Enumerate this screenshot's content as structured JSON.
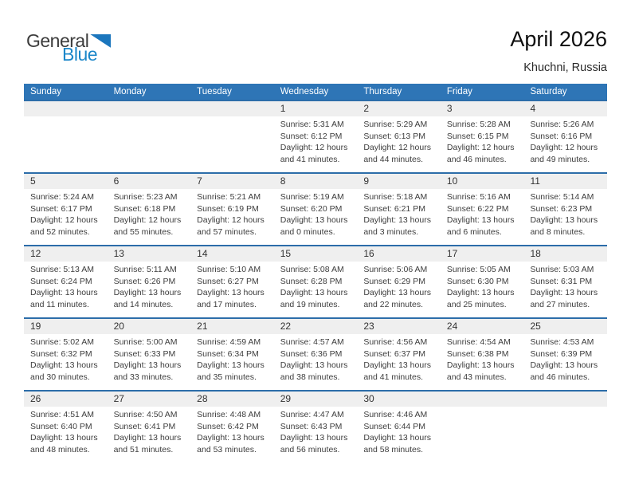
{
  "logo": {
    "word1": "General",
    "word2": "Blue"
  },
  "title": "April 2026",
  "location": "Khuchni, Russia",
  "labels": {
    "sunrise": "Sunrise:",
    "sunset": "Sunset:",
    "daylight": "Daylight:"
  },
  "colors": {
    "header_bg": "#2e75b6",
    "week_border": "#2c6da9",
    "day_band_bg": "#efefef",
    "header_text": "#ffffff",
    "cell_text": "#3d3d3d",
    "day_number_text": "#333333",
    "logo_blue": "#1c87c9",
    "logo_triangle": "#1b76bd",
    "logo_dark": "#3c3c3c"
  },
  "calendar": {
    "weekday_headers": [
      "Sunday",
      "Monday",
      "Tuesday",
      "Wednesday",
      "Thursday",
      "Friday",
      "Saturday"
    ],
    "weeks": [
      {
        "cells": [
          null,
          null,
          null,
          {
            "day": "1",
            "sunrise": "5:31 AM",
            "sunset": "6:12 PM",
            "daylight": "12 hours and 41 minutes."
          },
          {
            "day": "2",
            "sunrise": "5:29 AM",
            "sunset": "6:13 PM",
            "daylight": "12 hours and 44 minutes."
          },
          {
            "day": "3",
            "sunrise": "5:28 AM",
            "sunset": "6:15 PM",
            "daylight": "12 hours and 46 minutes."
          },
          {
            "day": "4",
            "sunrise": "5:26 AM",
            "sunset": "6:16 PM",
            "daylight": "12 hours and 49 minutes."
          }
        ]
      },
      {
        "cells": [
          {
            "day": "5",
            "sunrise": "5:24 AM",
            "sunset": "6:17 PM",
            "daylight": "12 hours and 52 minutes."
          },
          {
            "day": "6",
            "sunrise": "5:23 AM",
            "sunset": "6:18 PM",
            "daylight": "12 hours and 55 minutes."
          },
          {
            "day": "7",
            "sunrise": "5:21 AM",
            "sunset": "6:19 PM",
            "daylight": "12 hours and 57 minutes."
          },
          {
            "day": "8",
            "sunrise": "5:19 AM",
            "sunset": "6:20 PM",
            "daylight": "13 hours and 0 minutes."
          },
          {
            "day": "9",
            "sunrise": "5:18 AM",
            "sunset": "6:21 PM",
            "daylight": "13 hours and 3 minutes."
          },
          {
            "day": "10",
            "sunrise": "5:16 AM",
            "sunset": "6:22 PM",
            "daylight": "13 hours and 6 minutes."
          },
          {
            "day": "11",
            "sunrise": "5:14 AM",
            "sunset": "6:23 PM",
            "daylight": "13 hours and 8 minutes."
          }
        ]
      },
      {
        "cells": [
          {
            "day": "12",
            "sunrise": "5:13 AM",
            "sunset": "6:24 PM",
            "daylight": "13 hours and 11 minutes."
          },
          {
            "day": "13",
            "sunrise": "5:11 AM",
            "sunset": "6:26 PM",
            "daylight": "13 hours and 14 minutes."
          },
          {
            "day": "14",
            "sunrise": "5:10 AM",
            "sunset": "6:27 PM",
            "daylight": "13 hours and 17 minutes."
          },
          {
            "day": "15",
            "sunrise": "5:08 AM",
            "sunset": "6:28 PM",
            "daylight": "13 hours and 19 minutes."
          },
          {
            "day": "16",
            "sunrise": "5:06 AM",
            "sunset": "6:29 PM",
            "daylight": "13 hours and 22 minutes."
          },
          {
            "day": "17",
            "sunrise": "5:05 AM",
            "sunset": "6:30 PM",
            "daylight": "13 hours and 25 minutes."
          },
          {
            "day": "18",
            "sunrise": "5:03 AM",
            "sunset": "6:31 PM",
            "daylight": "13 hours and 27 minutes."
          }
        ]
      },
      {
        "cells": [
          {
            "day": "19",
            "sunrise": "5:02 AM",
            "sunset": "6:32 PM",
            "daylight": "13 hours and 30 minutes."
          },
          {
            "day": "20",
            "sunrise": "5:00 AM",
            "sunset": "6:33 PM",
            "daylight": "13 hours and 33 minutes."
          },
          {
            "day": "21",
            "sunrise": "4:59 AM",
            "sunset": "6:34 PM",
            "daylight": "13 hours and 35 minutes."
          },
          {
            "day": "22",
            "sunrise": "4:57 AM",
            "sunset": "6:36 PM",
            "daylight": "13 hours and 38 minutes."
          },
          {
            "day": "23",
            "sunrise": "4:56 AM",
            "sunset": "6:37 PM",
            "daylight": "13 hours and 41 minutes."
          },
          {
            "day": "24",
            "sunrise": "4:54 AM",
            "sunset": "6:38 PM",
            "daylight": "13 hours and 43 minutes."
          },
          {
            "day": "25",
            "sunrise": "4:53 AM",
            "sunset": "6:39 PM",
            "daylight": "13 hours and 46 minutes."
          }
        ]
      },
      {
        "cells": [
          {
            "day": "26",
            "sunrise": "4:51 AM",
            "sunset": "6:40 PM",
            "daylight": "13 hours and 48 minutes."
          },
          {
            "day": "27",
            "sunrise": "4:50 AM",
            "sunset": "6:41 PM",
            "daylight": "13 hours and 51 minutes."
          },
          {
            "day": "28",
            "sunrise": "4:48 AM",
            "sunset": "6:42 PM",
            "daylight": "13 hours and 53 minutes."
          },
          {
            "day": "29",
            "sunrise": "4:47 AM",
            "sunset": "6:43 PM",
            "daylight": "13 hours and 56 minutes."
          },
          {
            "day": "30",
            "sunrise": "4:46 AM",
            "sunset": "6:44 PM",
            "daylight": "13 hours and 58 minutes."
          },
          null,
          null
        ]
      }
    ]
  }
}
